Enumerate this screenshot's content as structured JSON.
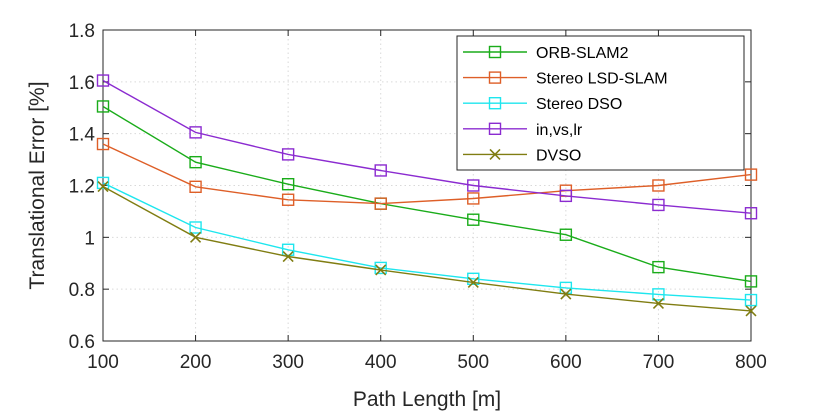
{
  "chart_data": {
    "type": "line",
    "title": "",
    "xlabel": "Path Length [m]",
    "ylabel": "Translational Error [%]",
    "x": [
      100,
      200,
      300,
      400,
      500,
      600,
      700,
      800
    ],
    "xlim": [
      100,
      800
    ],
    "ylim": [
      0.6,
      1.8
    ],
    "xticks": [
      "100",
      "200",
      "300",
      "400",
      "500",
      "600",
      "700",
      "800"
    ],
    "yticks": [
      "0.6",
      "0.8",
      "1",
      "1.2",
      "1.4",
      "1.6",
      "1.8"
    ],
    "grid": true,
    "legend_position": "top-right",
    "series": [
      {
        "name": "ORB-SLAM2",
        "color": "#1aac1a",
        "marker": "square",
        "values": [
          1.505,
          1.29,
          1.205,
          1.13,
          1.068,
          1.01,
          0.885,
          0.83
        ]
      },
      {
        "name": "Stereo LSD-SLAM",
        "color": "#de5f28",
        "marker": "square",
        "values": [
          1.36,
          1.195,
          1.145,
          1.13,
          1.15,
          1.18,
          1.2,
          1.242
        ]
      },
      {
        "name": "Stereo DSO",
        "color": "#1ee6ee",
        "marker": "square",
        "values": [
          1.21,
          1.038,
          0.952,
          0.882,
          0.84,
          0.805,
          0.78,
          0.758
        ]
      },
      {
        "name": "in,vs,lr",
        "color": "#8b2bd0",
        "marker": "square",
        "values": [
          1.605,
          1.405,
          1.32,
          1.258,
          1.2,
          1.16,
          1.125,
          1.093
        ]
      },
      {
        "name": "DVSO",
        "color": "#807d12",
        "marker": "x",
        "values": [
          1.196,
          1.0,
          0.926,
          0.874,
          0.826,
          0.781,
          0.745,
          0.716
        ]
      }
    ]
  }
}
